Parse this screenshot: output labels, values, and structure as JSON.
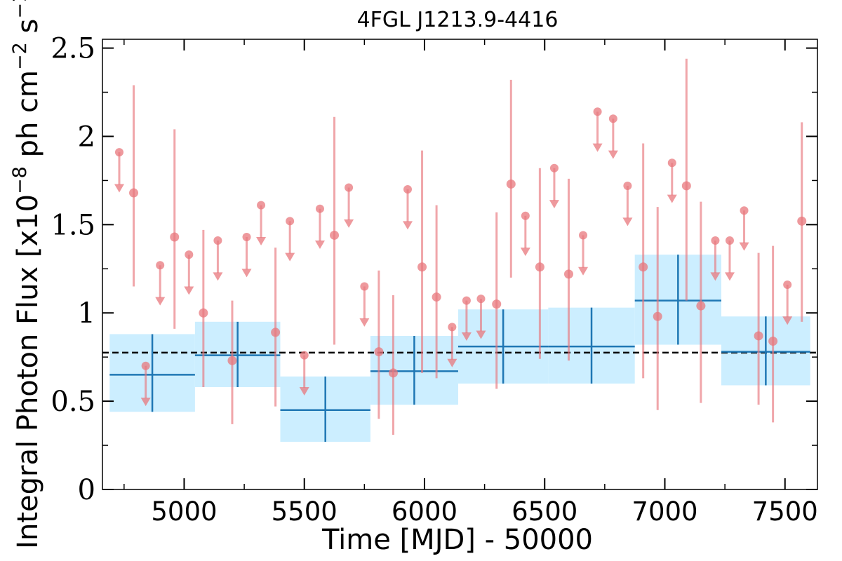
{
  "chart_data": {
    "type": "scatter",
    "title": "4FGL J1213.9-4416",
    "xlabel": "Time [MJD] - 50000",
    "ylabel": "Integral Photon Flux [x10",
    "ylabel_exp1": "−8",
    "ylabel_mid": " ph cm",
    "ylabel_exp2": "−2",
    "ylabel_tail": " s",
    "ylabel_exp3": "−1",
    "ylabel_close": "]",
    "xlim": [
      4660,
      7635
    ],
    "ylim": [
      0,
      2.55
    ],
    "xticks": [
      5000,
      5500,
      6000,
      6500,
      7000,
      7500
    ],
    "xtick_labels": [
      "5000",
      "5500",
      "6000",
      "6500",
      "7000",
      "7500"
    ],
    "yticks": [
      0,
      0.5,
      1,
      1.5,
      2,
      2.5
    ],
    "ytick_labels": [
      "0",
      "0.5",
      "1",
      "1.5",
      "2",
      "2.5"
    ],
    "average_flux": 0.775,
    "colors": {
      "points": "#e8777c",
      "bins": "#1f77b4",
      "bin_fill": "#cceeff",
      "average_line": "#000000"
    },
    "detections": [
      {
        "x": 4790,
        "y": 1.68,
        "lo": 1.15,
        "hi": 2.29
      },
      {
        "x": 4960,
        "y": 1.43,
        "lo": 0.91,
        "hi": 2.04
      },
      {
        "x": 5080,
        "y": 1.0,
        "lo": 0.58,
        "hi": 1.47
      },
      {
        "x": 5200,
        "y": 0.73,
        "lo": 0.37,
        "hi": 1.07
      },
      {
        "x": 5380,
        "y": 0.89,
        "lo": 0.47,
        "hi": 1.37
      },
      {
        "x": 5625,
        "y": 1.44,
        "lo": 0.82,
        "hi": 2.11
      },
      {
        "x": 5810,
        "y": 0.78,
        "lo": 0.4,
        "hi": 1.24
      },
      {
        "x": 5870,
        "y": 0.66,
        "lo": 0.31,
        "hi": 1.1
      },
      {
        "x": 5990,
        "y": 1.26,
        "lo": 0.66,
        "hi": 1.92
      },
      {
        "x": 6050,
        "y": 1.09,
        "lo": 0.63,
        "hi": 1.61
      },
      {
        "x": 6300,
        "y": 1.05,
        "lo": 0.57,
        "hi": 1.57
      },
      {
        "x": 6360,
        "y": 1.73,
        "lo": 1.2,
        "hi": 2.32
      },
      {
        "x": 6480,
        "y": 1.26,
        "lo": 0.74,
        "hi": 1.82
      },
      {
        "x": 6600,
        "y": 1.22,
        "lo": 0.73,
        "hi": 1.76
      },
      {
        "x": 6910,
        "y": 1.26,
        "lo": 0.63,
        "hi": 1.96
      },
      {
        "x": 6970,
        "y": 0.98,
        "lo": 0.45,
        "hi": 1.6
      },
      {
        "x": 7090,
        "y": 1.72,
        "lo": 1.07,
        "hi": 2.44
      },
      {
        "x": 7150,
        "y": 1.04,
        "lo": 0.49,
        "hi": 1.63
      },
      {
        "x": 7390,
        "y": 0.87,
        "lo": 0.48,
        "hi": 1.34
      },
      {
        "x": 7450,
        "y": 0.84,
        "lo": 0.38,
        "hi": 1.38
      },
      {
        "x": 7570,
        "y": 1.52,
        "lo": 0.95,
        "hi": 2.08
      }
    ],
    "upper_limits": [
      {
        "x": 4730,
        "y": 1.91
      },
      {
        "x": 4840,
        "y": 0.7
      },
      {
        "x": 4900,
        "y": 1.27
      },
      {
        "x": 5020,
        "y": 1.33
      },
      {
        "x": 5140,
        "y": 1.41
      },
      {
        "x": 5260,
        "y": 1.43
      },
      {
        "x": 5320,
        "y": 1.61
      },
      {
        "x": 5440,
        "y": 1.52
      },
      {
        "x": 5500,
        "y": 0.76
      },
      {
        "x": 5565,
        "y": 1.59
      },
      {
        "x": 5685,
        "y": 1.71
      },
      {
        "x": 5750,
        "y": 1.15
      },
      {
        "x": 5930,
        "y": 1.7
      },
      {
        "x": 6115,
        "y": 0.92
      },
      {
        "x": 6175,
        "y": 1.07
      },
      {
        "x": 6235,
        "y": 1.08
      },
      {
        "x": 6420,
        "y": 1.55
      },
      {
        "x": 6540,
        "y": 1.82
      },
      {
        "x": 6660,
        "y": 1.44
      },
      {
        "x": 6720,
        "y": 2.14
      },
      {
        "x": 6785,
        "y": 2.1
      },
      {
        "x": 6845,
        "y": 1.72
      },
      {
        "x": 7030,
        "y": 1.85
      },
      {
        "x": 7210,
        "y": 1.41
      },
      {
        "x": 7270,
        "y": 1.41
      },
      {
        "x": 7330,
        "y": 1.58
      },
      {
        "x": 7510,
        "y": 1.16
      }
    ],
    "bins": [
      {
        "x0": 4690,
        "x1": 5045,
        "y": 0.65,
        "lo": 0.44,
        "hi": 0.88
      },
      {
        "x0": 5045,
        "x1": 5400,
        "y": 0.76,
        "lo": 0.58,
        "hi": 0.95
      },
      {
        "x0": 5400,
        "x1": 5775,
        "y": 0.45,
        "lo": 0.27,
        "hi": 0.64
      },
      {
        "x0": 5775,
        "x1": 6140,
        "y": 0.67,
        "lo": 0.48,
        "hi": 0.87
      },
      {
        "x0": 6140,
        "x1": 6515,
        "y": 0.81,
        "lo": 0.6,
        "hi": 1.02
      },
      {
        "x0": 6515,
        "x1": 6875,
        "y": 0.81,
        "lo": 0.6,
        "hi": 1.03
      },
      {
        "x0": 6875,
        "x1": 7235,
        "y": 1.07,
        "lo": 0.82,
        "hi": 1.33
      },
      {
        "x0": 7235,
        "x1": 7605,
        "y": 0.78,
        "lo": 0.59,
        "hi": 0.98
      }
    ]
  }
}
